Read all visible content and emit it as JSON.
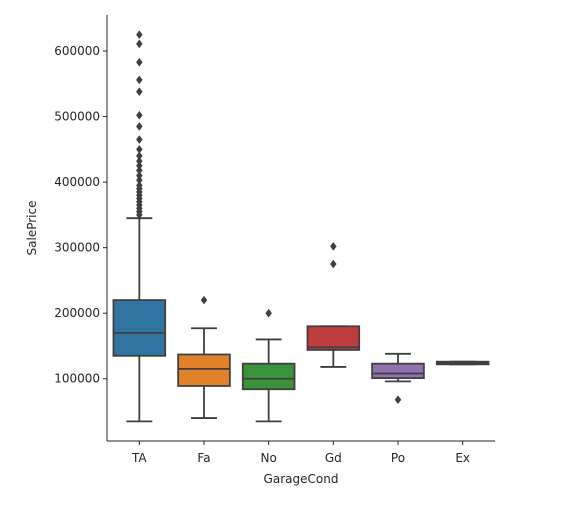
{
  "chart_data": {
    "type": "box",
    "xlabel": "GarageCond",
    "ylabel": "SalePrice",
    "ylim": [
      5000,
      655000
    ],
    "yticks": [
      100000,
      200000,
      300000,
      400000,
      500000,
      600000
    ],
    "grid": false,
    "categories": [
      "TA",
      "Fa",
      "No",
      "Gd",
      "Po",
      "Ex"
    ],
    "boxes": [
      {
        "category": "TA",
        "color": "#3274a1",
        "q1": 135000,
        "median": 170000,
        "q3": 220000,
        "whisker_low": 35000,
        "whisker_high": 345000,
        "outliers": [
          350000,
          355000,
          360000,
          365000,
          370000,
          375000,
          380000,
          385000,
          390000,
          395000,
          403000,
          410000,
          418000,
          425000,
          432000,
          440000,
          450000,
          465000,
          485000,
          502000,
          538000,
          556000,
          583000,
          611000,
          625000
        ]
      },
      {
        "category": "Fa",
        "color": "#e1812c",
        "q1": 89000,
        "median": 115000,
        "q3": 137000,
        "whisker_low": 40000,
        "whisker_high": 177000,
        "outliers": [
          220000
        ]
      },
      {
        "category": "No",
        "color": "#3a923a",
        "q1": 84000,
        "median": 100000,
        "q3": 123000,
        "whisker_low": 35000,
        "whisker_high": 160000,
        "outliers": [
          200000
        ]
      },
      {
        "category": "Gd",
        "color": "#c03d3e",
        "q1": 144000,
        "median": 148000,
        "q3": 180000,
        "whisker_low": 118000,
        "whisker_high": 180000,
        "outliers": [
          275000,
          302000
        ]
      },
      {
        "category": "Po",
        "color": "#9372b2",
        "q1": 101000,
        "median": 108000,
        "q3": 123000,
        "whisker_low": 96000,
        "whisker_high": 138000,
        "outliers": [
          68000
        ]
      },
      {
        "category": "Ex",
        "color": "#845b53",
        "q1": 122000,
        "median": 124000,
        "q3": 126000,
        "whisker_low": 122000,
        "whisker_high": 126000,
        "outliers": []
      }
    ]
  }
}
